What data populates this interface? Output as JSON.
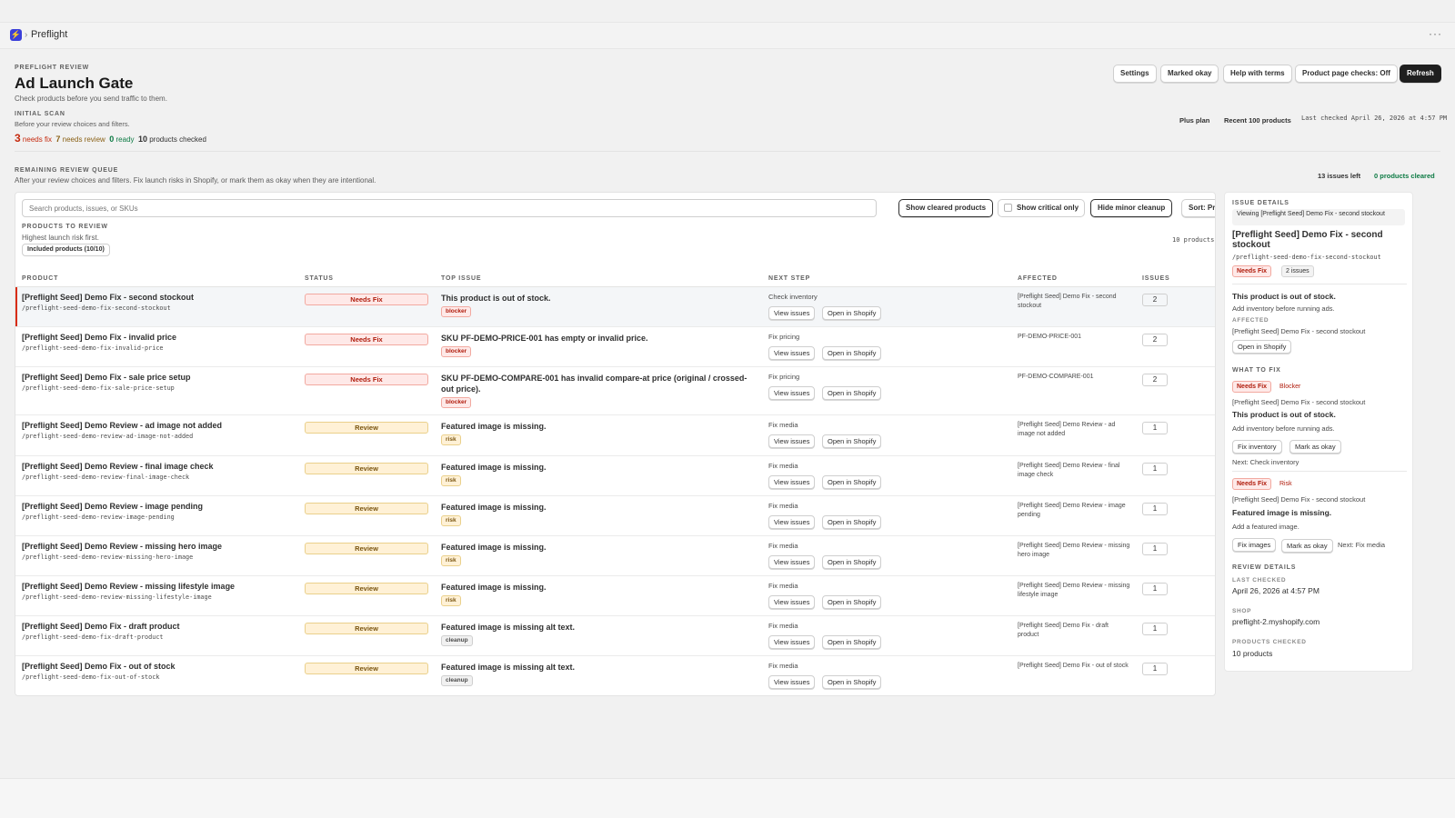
{
  "topbar": {
    "app_icon": "app-logo-icon",
    "separator": "›",
    "title": "Preflight",
    "more": "···"
  },
  "header": {
    "eyebrow": "PREFLIGHT REVIEW",
    "title": "Ad Launch Gate",
    "subtitle": "Check products before you send traffic to them.",
    "scan_eyebrow": "INITIAL SCAN",
    "scan_subtitle": "Before your review choices and filters.",
    "buttons": {
      "settings": "Settings",
      "marked_okay": "Marked okay",
      "help": "Help with terms",
      "product_page_checks": "Product page checks: Off",
      "refresh": "Refresh"
    },
    "plan": "Plus plan",
    "recent": "Recent 100 products",
    "last_checked": "Last checked April 26, 2026 at 4:57 PM"
  },
  "counts": {
    "needs_fix_num": "3",
    "needs_fix_label": "needs fix",
    "needs_review_num": "7",
    "needs_review_label": "needs review",
    "ready_num": "0",
    "ready_label": "ready",
    "checked_num": "10",
    "checked_label": "products checked"
  },
  "queue": {
    "eyebrow": "REMAINING REVIEW QUEUE",
    "subtitle": "After your review choices and filters. Fix launch risks in Shopify, or mark them as okay when they are intentional.",
    "issues_left": "13 issues left",
    "products_cleared": "0 products cleared"
  },
  "toolbar": {
    "search_placeholder": "Search products, issues, or SKUs",
    "show_cleared": "Show cleared products",
    "show_critical": "Show critical only",
    "hide_minor": "Hide minor cleanup",
    "sort": "Sort: Priority"
  },
  "list": {
    "eyebrow": "PRODUCTS TO REVIEW",
    "subtitle": "Highest launch risk first.",
    "included": "Included products (10/10)",
    "count_text": "10 products"
  },
  "columns": {
    "product": "PRODUCT",
    "status": "STATUS",
    "top_issue": "TOP ISSUE",
    "next_step": "NEXT STEP",
    "affected": "AFFECTED",
    "issues": "ISSUES"
  },
  "row_buttons": {
    "view": "View issues",
    "open": "Open in Shopify"
  },
  "rows": [
    {
      "name": "[Preflight Seed] Demo Fix - second stockout",
      "handle": "/preflight-seed-demo-fix-second-stockout",
      "status": "Needs Fix",
      "issue": "This product is out of stock.",
      "tag": "blocker",
      "next": "Check inventory",
      "affected": "[Preflight Seed] Demo Fix - second stockout",
      "count": "2"
    },
    {
      "name": "[Preflight Seed] Demo Fix - invalid price",
      "handle": "/preflight-seed-demo-fix-invalid-price",
      "status": "Needs Fix",
      "issue": "SKU PF-DEMO-PRICE-001 has empty or invalid price.",
      "tag": "blocker",
      "next": "Fix pricing",
      "affected": "PF-DEMO-PRICE-001",
      "count": "2"
    },
    {
      "name": "[Preflight Seed] Demo Fix - sale price setup",
      "handle": "/preflight-seed-demo-fix-sale-price-setup",
      "status": "Needs Fix",
      "issue": "SKU PF-DEMO-COMPARE-001 has invalid compare-at price (original / crossed-out price).",
      "tag": "blocker",
      "next": "Fix pricing",
      "affected": "PF-DEMO-COMPARE-001",
      "count": "2"
    },
    {
      "name": "[Preflight Seed] Demo Review - ad image not added",
      "handle": "/preflight-seed-demo-review-ad-image-not-added",
      "status": "Review",
      "issue": "Featured image is missing.",
      "tag": "risk",
      "next": "Fix media",
      "affected": "[Preflight Seed] Demo Review - ad image not added",
      "count": "1"
    },
    {
      "name": "[Preflight Seed] Demo Review - final image check",
      "handle": "/preflight-seed-demo-review-final-image-check",
      "status": "Review",
      "issue": "Featured image is missing.",
      "tag": "risk",
      "next": "Fix media",
      "affected": "[Preflight Seed] Demo Review - final image check",
      "count": "1"
    },
    {
      "name": "[Preflight Seed] Demo Review - image pending",
      "handle": "/preflight-seed-demo-review-image-pending",
      "status": "Review",
      "issue": "Featured image is missing.",
      "tag": "risk",
      "next": "Fix media",
      "affected": "[Preflight Seed] Demo Review - image pending",
      "count": "1"
    },
    {
      "name": "[Preflight Seed] Demo Review - missing hero image",
      "handle": "/preflight-seed-demo-review-missing-hero-image",
      "status": "Review",
      "issue": "Featured image is missing.",
      "tag": "risk",
      "next": "Fix media",
      "affected": "[Preflight Seed] Demo Review - missing hero image",
      "count": "1"
    },
    {
      "name": "[Preflight Seed] Demo Review - missing lifestyle image",
      "handle": "/preflight-seed-demo-review-missing-lifestyle-image",
      "status": "Review",
      "issue": "Featured image is missing.",
      "tag": "risk",
      "next": "Fix media",
      "affected": "[Preflight Seed] Demo Review - missing lifestyle image",
      "count": "1"
    },
    {
      "name": "[Preflight Seed] Demo Fix - draft product",
      "handle": "/preflight-seed-demo-fix-draft-product",
      "status": "Review",
      "issue": "Featured image is missing alt text.",
      "tag": "cleanup",
      "next": "Fix media",
      "affected": "[Preflight Seed] Demo Fix - draft product",
      "count": "1"
    },
    {
      "name": "[Preflight Seed] Demo Fix - out of stock",
      "handle": "/preflight-seed-demo-fix-out-of-stock",
      "status": "Review",
      "issue": "Featured image is missing alt text.",
      "tag": "cleanup",
      "next": "Fix media",
      "affected": "[Preflight Seed] Demo Fix - out of stock",
      "count": "1"
    }
  ],
  "panel": {
    "eyebrow": "ISSUE DETAILS",
    "viewing": "Viewing [Preflight Seed] Demo Fix - second stockout",
    "title": "[Preflight Seed] Demo Fix - second stockout",
    "handle": "/preflight-seed-demo-fix-second-stockout",
    "status_tag": "Needs Fix",
    "issues_tag": "2 issues",
    "issue_title": "This product is out of stock.",
    "issue_desc": "Add inventory before running ads.",
    "affected_label": "AFFECTED",
    "affected_value": "[Preflight Seed] Demo Fix - second stockout",
    "open_shopify": "Open in Shopify",
    "what_to_fix": "WHAT TO FIX",
    "fix1": {
      "tag": "Needs Fix",
      "severity": "Blocker",
      "product": "[Preflight Seed] Demo Fix - second stockout",
      "title": "This product is out of stock.",
      "desc": "Add inventory before running ads.",
      "btn1": "Fix inventory",
      "btn2": "Mark as okay",
      "next": "Next: Check inventory"
    },
    "fix2": {
      "tag": "Needs Fix",
      "severity": "Risk",
      "product": "[Preflight Seed] Demo Fix - second stockout",
      "title": "Featured image is missing.",
      "desc": "Add a featured image.",
      "btn1": "Fix images",
      "btn2": "Mark as okay",
      "next": "Next: Fix media"
    },
    "review_details": "REVIEW DETAILS",
    "last_checked_label": "LAST CHECKED",
    "last_checked_value": "April 26, 2026 at 4:57 PM",
    "shop_label": "SHOP",
    "shop_value": "preflight-2.myshopify.com",
    "checked_label": "PRODUCTS CHECKED",
    "checked_value": "10 products"
  }
}
